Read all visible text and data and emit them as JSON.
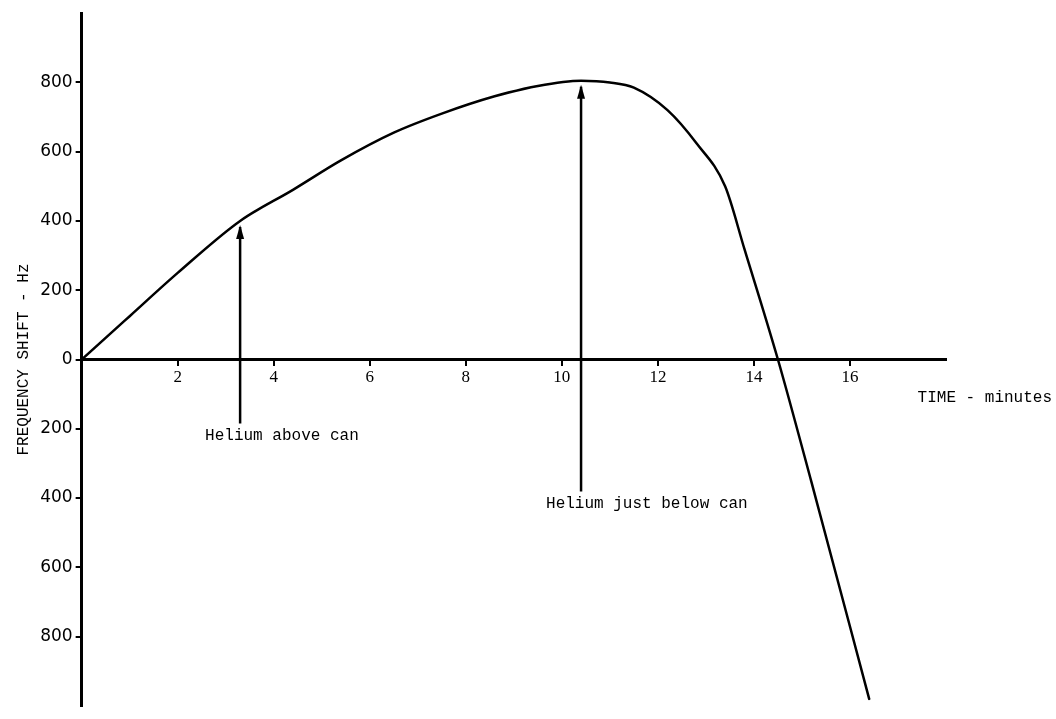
{
  "chart_data": {
    "type": "line",
    "xlabel": "TIME - minutes",
    "ylabel": "FREQUENCY SHIFT - Hz",
    "x": [
      0,
      1,
      2,
      3.3,
      4.4,
      5.4,
      6.5,
      7.5,
      8.6,
      9.5,
      10.4,
      11,
      11.5,
      12.2,
      12.8,
      13.4,
      13.8,
      14.5,
      15.2,
      16.4
    ],
    "series": [
      {
        "color": "#000000",
        "values": [
          0,
          125,
          250,
          400,
          490,
          575,
          655,
          710,
          760,
          790,
          805,
          800,
          785,
          720,
          625,
          500,
          320,
          0,
          -355,
          -980
        ]
      }
    ],
    "xlim": [
      0,
      18
    ],
    "xticks": [
      2,
      4,
      6,
      8,
      10,
      12,
      14,
      16
    ],
    "ylim": [
      -1000,
      1000
    ],
    "yticks": [
      800,
      600,
      400,
      200,
      0,
      {
        "value": -200,
        "label": "200"
      },
      {
        "value": -400,
        "label": "400"
      },
      {
        "value": -600,
        "label": "600"
      },
      {
        "value": -800,
        "label": "800"
      }
    ],
    "annotations": [
      {
        "text": "Helium above can",
        "x": 3.3,
        "y": 400
      },
      {
        "text": "Helium just below can",
        "x": 10.4,
        "y": 805
      }
    ],
    "grid": false,
    "legend": false,
    "marker": "none",
    "line_style": "solid"
  }
}
